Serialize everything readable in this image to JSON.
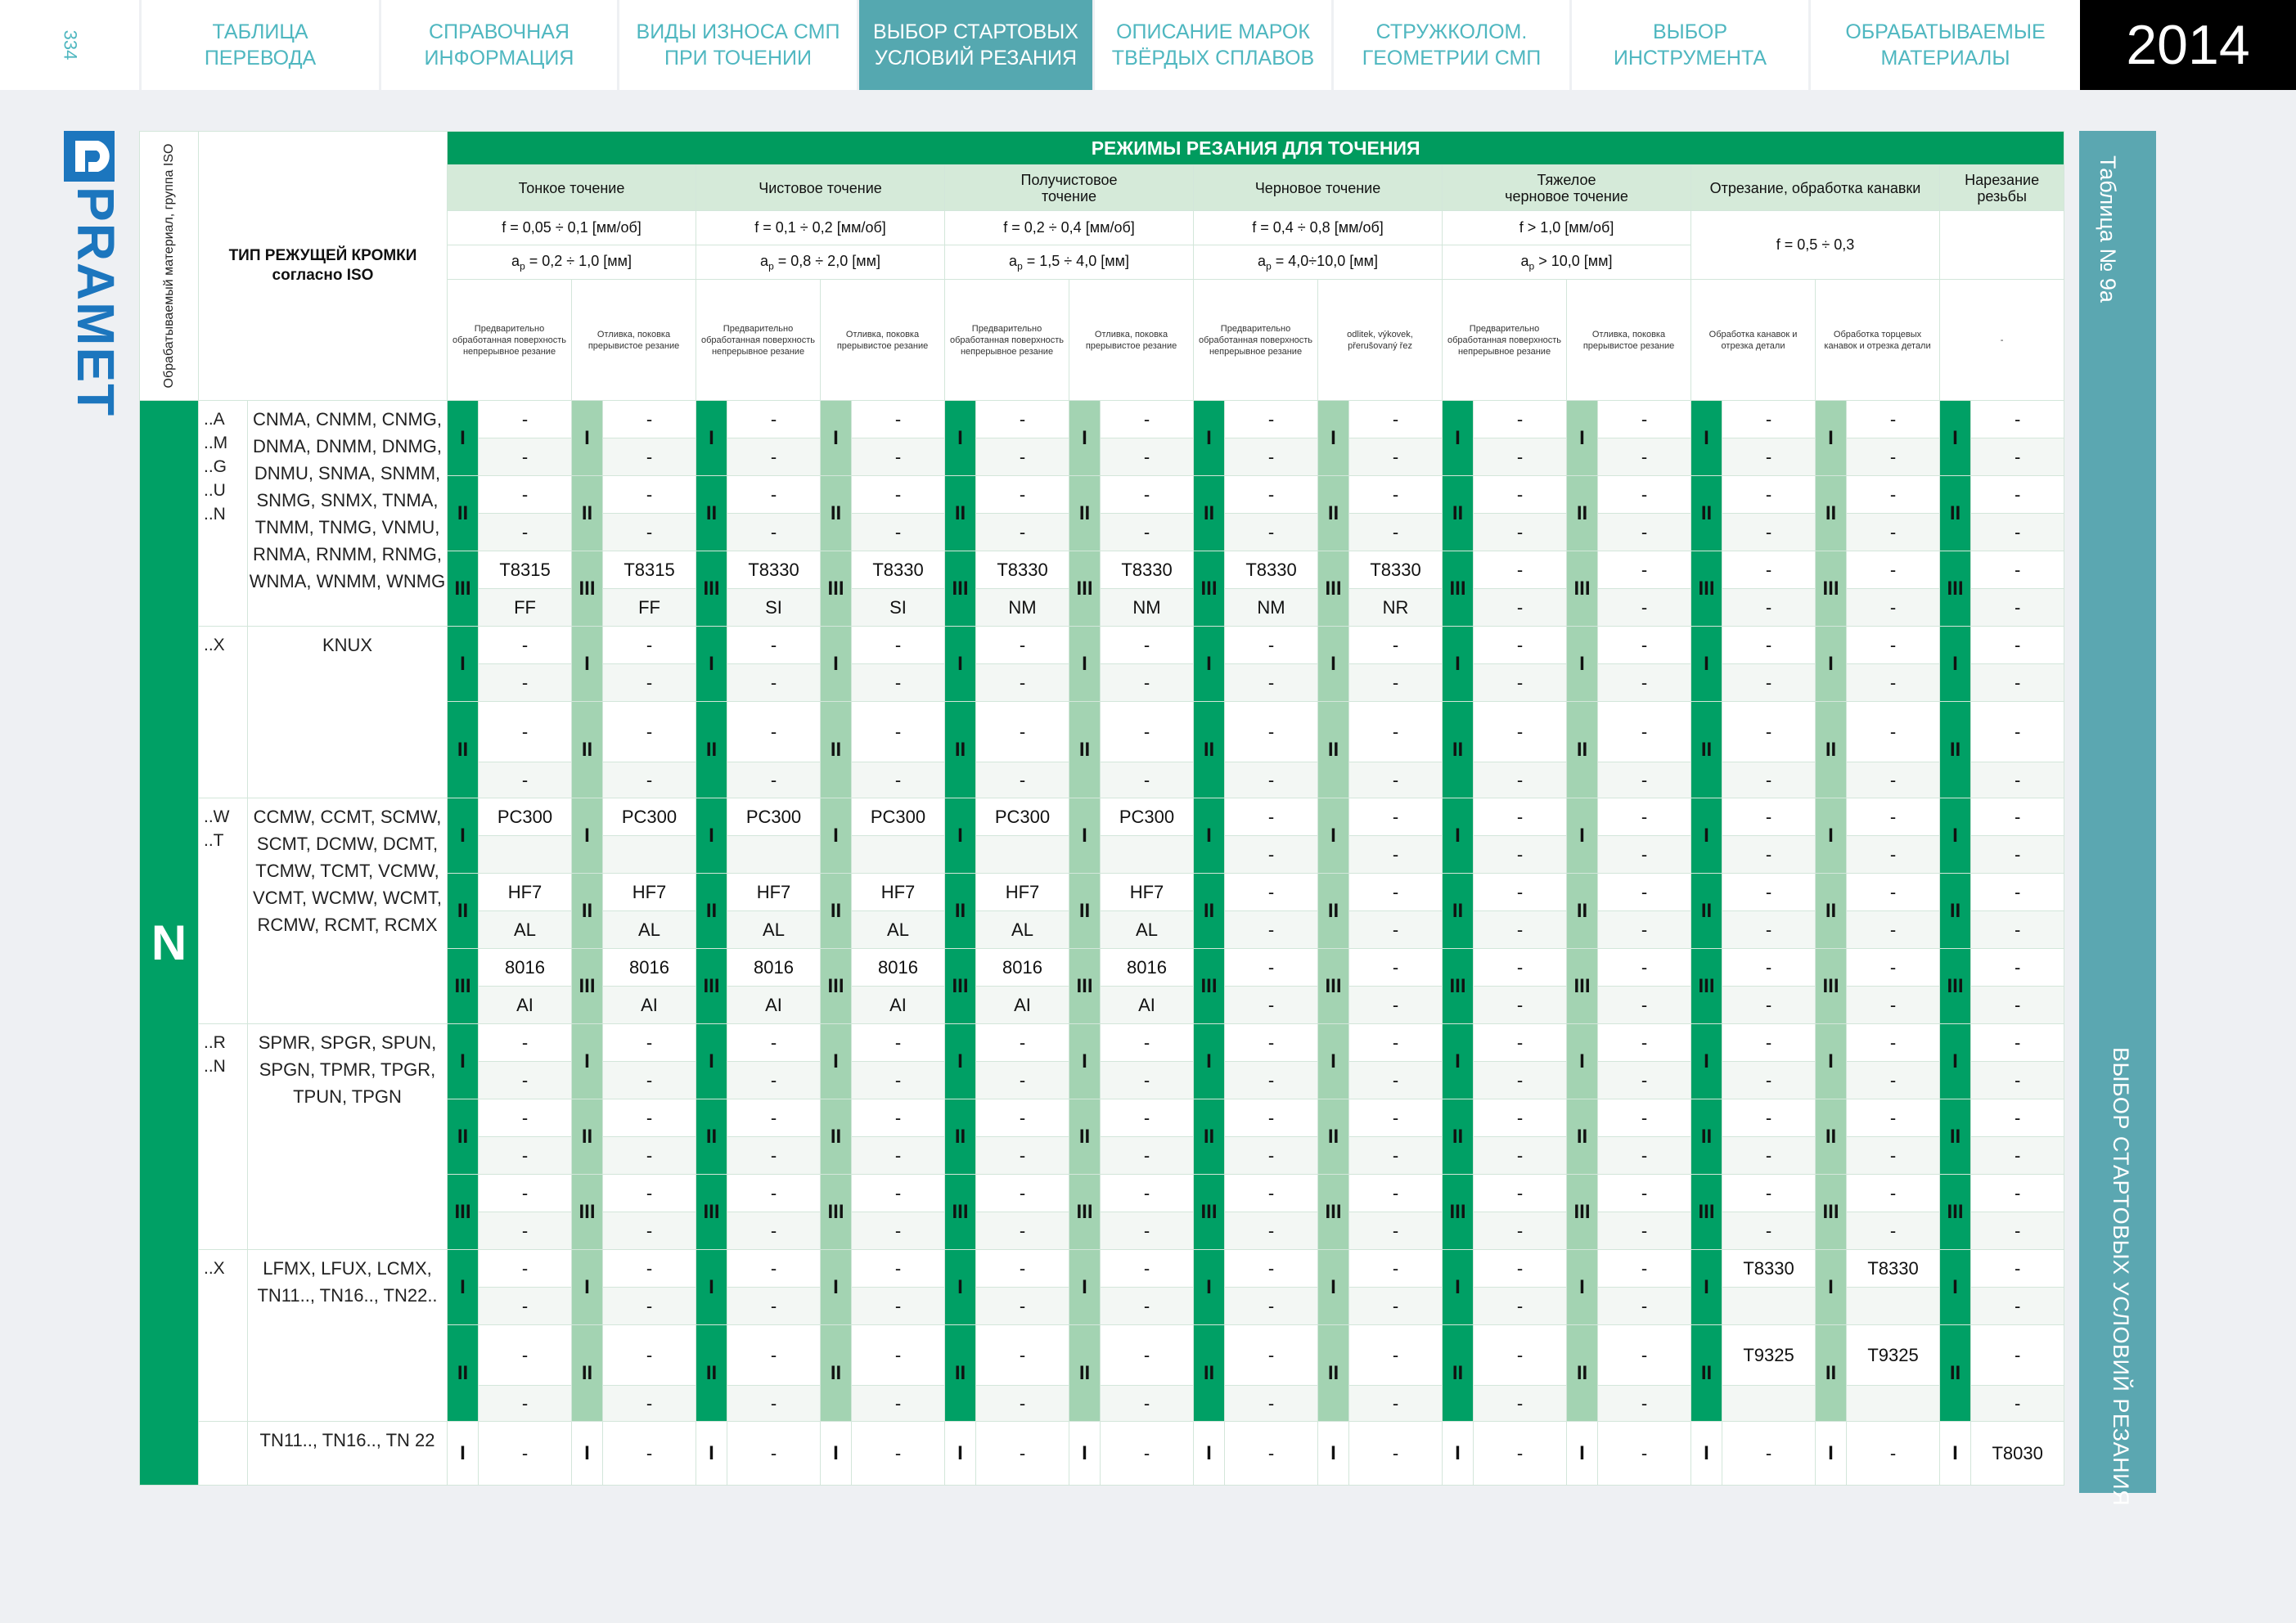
{
  "page_number": "334",
  "nav_tabs": [
    {
      "label": "ТАБЛИЦА\nПЕРЕВОДА",
      "active": false
    },
    {
      "label": "СПРАВОЧНАЯ\nИНФОРМАЦИЯ",
      "active": false
    },
    {
      "label": "ВИДЫ ИЗНОСА СМП\nПРИ ТОЧЕНИИ",
      "active": false
    },
    {
      "label": "ВЫБОР СТАРТОВЫХ\nУСЛОВИЙ РЕЗАНИЯ",
      "active": true
    },
    {
      "label": "ОПИСАНИЕ МАРОК\nТВЁРДЫХ СПЛАВОВ",
      "active": false
    },
    {
      "label": "СТРУЖКОЛОМ.\nГЕОМЕТРИИ СМП",
      "active": false
    },
    {
      "label": "ВЫБОР\nИНСТРУМЕНТА",
      "active": false
    },
    {
      "label": "ОБРАБАТЫВАЕМЫЕ\nМАТЕРИАЛЫ",
      "active": false
    }
  ],
  "year": "2014",
  "logo_text": "PRAMET",
  "side_table_label": "Таблица № 9а",
  "side_section_label": "ВЫБОР СТАРТОВЫХ УСЛОВИЙ РЕЗАНИЯ",
  "table": {
    "title": "РЕЖИМЫ РЕЗАНИЯ ДЛЯ ТОЧЕНИЯ",
    "material_group_header": "Обрабатываемый материал, группа ISO",
    "edge_type_header": "ТИП РЕЖУЩЕЙ КРОМКИ\nсогласно ISO",
    "operations": [
      {
        "name": "Тонкое точение",
        "f": "f = 0,05 ÷ 0,1 [мм/об]",
        "ap": "= 0,2 ÷ 1,0 [мм]"
      },
      {
        "name": "Чистовое точение",
        "f": "f = 0,1 ÷ 0,2 [мм/об]",
        "ap": "= 0,8  ÷ 2,0 [мм]"
      },
      {
        "name": "Получистовое\nточение",
        "f": "f = 0,2 ÷ 0,4 [мм/об]",
        "ap": "= 1,5 ÷ 4,0 [мм]"
      },
      {
        "name": "Черновое точение",
        "f": "f = 0,4 ÷ 0,8 [мм/об]",
        "ap": "= 4,0÷10,0 [мм]"
      },
      {
        "name": "Тяжелое\nчерновое точение",
        "f": "f > 1,0 [мм/об]",
        "ap": "> 10,0 [мм]"
      }
    ],
    "grooving": {
      "name": "Отрезание, обработка канавки",
      "f": "f = 0,5 ÷ 0,3"
    },
    "threading": {
      "name": "Нарезание\nрезьбы"
    },
    "ap_symbol": "a",
    "ap_sub": "p",
    "subheaders": [
      "Предварительно обработанная поверхность непрерывное резание",
      "Отливка, поковка прерывистое резание",
      "Предварительно обработанная поверхность непрерывное резание",
      "Отливка, поковка прерывистое резание",
      "Предварительно обработанная поверхность непрерывное резание",
      "Отливка, поковка прерывистое резание",
      "Предварительно обработанная поверхность непрерывное резание",
      "odlitek, výkovek, přerušovaný řez",
      "Предварительно обработанная поверхность непрерывное резание",
      "Отливка, поковка прерывистое резание",
      "Обработка канавок и отрезка детали",
      "Обработка торцевых канавок и отрезка детали",
      "-"
    ],
    "iso_group": "N",
    "groups": [
      {
        "codes": "..A\n..M\n..G\n..U\n..N",
        "names": "CNMA, CNMM, CNMG,\nDNMA, DNMM, DNMG,\nDNMU, SNMA, SNMM,\nSNMG, SNMX, TNMA,\nTNMM, TNMG, VNMU,\nRNMA, RNMM, RNMG,\nWNMA, WNMM, WNMG",
        "bands": [
          {
            "roman": "I",
            "rows": [
              [
                "-",
                "-",
                "-",
                "-",
                "-",
                "-",
                "-",
                "-",
                "-",
                "-",
                "-",
                "-",
                "-"
              ],
              [
                "-",
                "-",
                "-",
                "-",
                "-",
                "-",
                "-",
                "-",
                "-",
                "-",
                "-",
                "-",
                "-"
              ]
            ]
          },
          {
            "roman": "II",
            "rows": [
              [
                "-",
                "-",
                "-",
                "-",
                "-",
                "-",
                "-",
                "-",
                "-",
                "-",
                "-",
                "-",
                "-"
              ],
              [
                "-",
                "-",
                "-",
                "-",
                "-",
                "-",
                "-",
                "-",
                "-",
                "-",
                "-",
                "-",
                "-"
              ]
            ]
          },
          {
            "roman": "III",
            "rows": [
              [
                "T8315",
                "T8315",
                "T8330",
                "T8330",
                "T8330",
                "T8330",
                "T8330",
                "T8330",
                "-",
                "-",
                "-",
                "-",
                "-"
              ],
              [
                "FF",
                "FF",
                "SI",
                "SI",
                "NM",
                "NM",
                "NM",
                "NR",
                "-",
                "-",
                "-",
                "-",
                "-"
              ]
            ]
          }
        ]
      },
      {
        "codes": "..X",
        "names": "KNUX",
        "bands": [
          {
            "roman": "I",
            "rows": [
              [
                "-",
                "-",
                "-",
                "-",
                "-",
                "-",
                "-",
                "-",
                "-",
                "-",
                "-",
                "-",
                "-"
              ],
              [
                "-",
                "-",
                "-",
                "-",
                "-",
                "-",
                "-",
                "-",
                "-",
                "-",
                "-",
                "-",
                "-"
              ]
            ]
          },
          {
            "roman": "II",
            "tall": true,
            "rows": [
              [
                "-",
                "-",
                "-",
                "-",
                "-",
                "-",
                "-",
                "-",
                "-",
                "-",
                "-",
                "-",
                "-"
              ],
              [
                "-",
                "-",
                "-",
                "-",
                "-",
                "-",
                "-",
                "-",
                "-",
                "-",
                "-",
                "-",
                "-"
              ]
            ]
          }
        ]
      },
      {
        "codes": "..W\n..T",
        "names": "CCMW, CCMT, SCMW,\nSCMT, DCMW, DCMT,\nTCMW, TCMT, VCMW,\nVCMT, WCMW, WCMT,\nRCMW, RCMT, RCMX",
        "bands": [
          {
            "roman": "I",
            "rows": [
              [
                "PC300",
                "PC300",
                "PC300",
                "PC300",
                "PC300",
                "PC300",
                "-",
                "-",
                "-",
                "-",
                "-",
                "-",
                "-"
              ],
              [
                "",
                "",
                "",
                "",
                "",
                "",
                "-",
                "-",
                "-",
                "-",
                "-",
                "-",
                "-"
              ]
            ]
          },
          {
            "roman": "II",
            "rows": [
              [
                "HF7",
                "HF7",
                "HF7",
                "HF7",
                "HF7",
                "HF7",
                "-",
                "-",
                "-",
                "-",
                "-",
                "-",
                "-"
              ],
              [
                "AL",
                "AL",
                "AL",
                "AL",
                "AL",
                "AL",
                "-",
                "-",
                "-",
                "-",
                "-",
                "-",
                "-"
              ]
            ]
          },
          {
            "roman": "III",
            "rows": [
              [
                "8016",
                "8016",
                "8016",
                "8016",
                "8016",
                "8016",
                "-",
                "-",
                "-",
                "-",
                "-",
                "-",
                "-"
              ],
              [
                "AI",
                "AI",
                "AI",
                "AI",
                "AI",
                "AI",
                "-",
                "-",
                "-",
                "-",
                "-",
                "-",
                "-"
              ]
            ]
          }
        ]
      },
      {
        "codes": "..R\n..N",
        "names": "SPMR, SPGR, SPUN,\nSPGN, TPMR, TPGR,\nTPUN, TPGN",
        "bands": [
          {
            "roman": "I",
            "rows": [
              [
                "-",
                "-",
                "-",
                "-",
                "-",
                "-",
                "-",
                "-",
                "-",
                "-",
                "-",
                "-",
                "-"
              ],
              [
                "-",
                "-",
                "-",
                "-",
                "-",
                "-",
                "-",
                "-",
                "-",
                "-",
                "-",
                "-",
                "-"
              ]
            ]
          },
          {
            "roman": "II",
            "rows": [
              [
                "-",
                "-",
                "-",
                "-",
                "-",
                "-",
                "-",
                "-",
                "-",
                "-",
                "-",
                "-",
                "-"
              ],
              [
                "-",
                "-",
                "-",
                "-",
                "-",
                "-",
                "-",
                "-",
                "-",
                "-",
                "-",
                "-",
                "-"
              ]
            ]
          },
          {
            "roman": "III",
            "rows": [
              [
                "-",
                "-",
                "-",
                "-",
                "-",
                "-",
                "-",
                "-",
                "-",
                "-",
                "-",
                "-",
                "-"
              ],
              [
                "-",
                "-",
                "-",
                "-",
                "-",
                "-",
                "-",
                "-",
                "-",
                "-",
                "-",
                "-",
                "-"
              ]
            ]
          }
        ]
      },
      {
        "codes": "..X",
        "names": "LFMX, LFUX, LCMX,\nTN11.., TN16.., TN22..",
        "bands": [
          {
            "roman": "I",
            "rows": [
              [
                "-",
                "-",
                "-",
                "-",
                "-",
                "-",
                "-",
                "-",
                "-",
                "-",
                "T8330",
                "T8330",
                "-"
              ],
              [
                "-",
                "-",
                "-",
                "-",
                "-",
                "-",
                "-",
                "-",
                "-",
                "-",
                "",
                "",
                "-"
              ]
            ]
          },
          {
            "roman": "II",
            "tall": true,
            "rows": [
              [
                "-",
                "-",
                "-",
                "-",
                "-",
                "-",
                "-",
                "-",
                "-",
                "-",
                "T9325",
                "T9325",
                "-"
              ],
              [
                "-",
                "-",
                "-",
                "-",
                "-",
                "-",
                "-",
                "-",
                "-",
                "-",
                "",
                "",
                "-"
              ]
            ]
          }
        ]
      },
      {
        "codes": "",
        "names": "TN11.., TN16.., TN 22",
        "plain": true,
        "bands": [
          {
            "roman": "I",
            "single": true,
            "rows": [
              [
                "-",
                "-",
                "-",
                "-",
                "-",
                "-",
                "-",
                "-",
                "-",
                "-",
                "-",
                "-",
                "T8030"
              ]
            ]
          }
        ]
      }
    ]
  },
  "colors": {
    "brand_green": "#009b5e",
    "light_green": "#a3d3b2",
    "accent_teal": "#55a8b0",
    "logo_blue": "#1c76be"
  }
}
